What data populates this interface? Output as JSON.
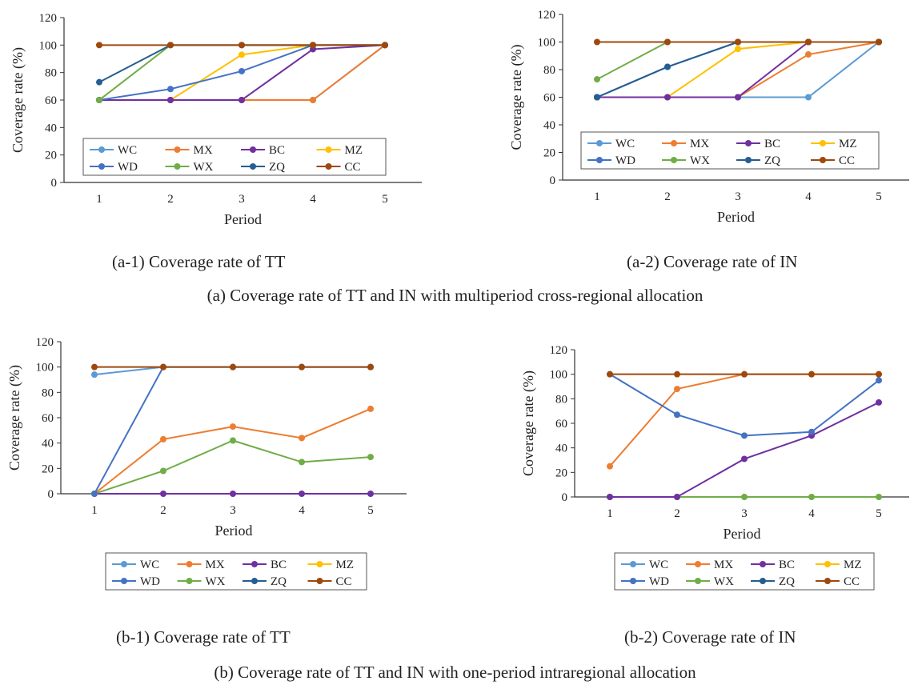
{
  "colors": {
    "WC": "#5B9BD5",
    "MX": "#ED7D31",
    "BC": "#7030A0",
    "MZ": "#FFC000",
    "WD": "#4472C4",
    "WX": "#70AD47",
    "ZQ": "#255E91",
    "CC": "#9E480E",
    "axis": "#333333"
  },
  "legend_entries": [
    "WC",
    "MX",
    "BC",
    "MZ",
    "WD",
    "WX",
    "ZQ",
    "CC"
  ],
  "captions": {
    "a1": "(a-1) Coverage rate of TT",
    "a2": "(a-2) Coverage rate of IN",
    "a": "(a) Coverage rate of TT and IN with multiperiod cross-regional allocation",
    "b1": "(b-1) Coverage rate of TT",
    "b2": "(b-2) Coverage rate of IN",
    "b": "(b) Coverage rate of TT and IN with one-period intraregional allocation"
  },
  "chart_data": [
    {
      "id": "a1",
      "type": "line",
      "title": "",
      "xlabel": "Period",
      "ylabel": "Coverage rate (%)",
      "x": [
        1,
        2,
        3,
        4,
        5
      ],
      "ylim": [
        0,
        120
      ],
      "yticks": [
        0,
        20,
        40,
        60,
        80,
        100,
        120
      ],
      "grid": false,
      "legend_position": "bottom-inside",
      "series": [
        {
          "name": "WC",
          "values": [
            60,
            60,
            60,
            60,
            100
          ]
        },
        {
          "name": "MX",
          "values": [
            60,
            60,
            60,
            60,
            100
          ]
        },
        {
          "name": "MZ",
          "values": [
            60,
            60,
            93,
            100,
            100
          ]
        },
        {
          "name": "BC",
          "values": [
            60,
            60,
            60,
            97,
            100
          ]
        },
        {
          "name": "WD",
          "values": [
            60,
            68,
            81,
            100,
            100
          ]
        },
        {
          "name": "WX",
          "values": [
            60,
            100,
            100,
            100,
            100
          ]
        },
        {
          "name": "ZQ",
          "values": [
            73,
            100,
            100,
            100,
            100
          ]
        },
        {
          "name": "CC",
          "values": [
            100,
            100,
            100,
            100,
            100
          ]
        }
      ]
    },
    {
      "id": "a2",
      "type": "line",
      "title": "",
      "xlabel": "Period",
      "ylabel": "Coverage rate (%)",
      "x": [
        1,
        2,
        3,
        4,
        5
      ],
      "ylim": [
        0,
        120
      ],
      "yticks": [
        0,
        20,
        40,
        60,
        80,
        100,
        120
      ],
      "grid": false,
      "legend_position": "bottom-inside",
      "series": [
        {
          "name": "WC",
          "values": [
            60,
            60,
            60,
            60,
            100
          ]
        },
        {
          "name": "MX",
          "values": [
            60,
            60,
            60,
            91,
            100
          ]
        },
        {
          "name": "MZ",
          "values": [
            60,
            60,
            95,
            100,
            100
          ]
        },
        {
          "name": "BC",
          "values": [
            60,
            60,
            60,
            100,
            100
          ]
        },
        {
          "name": "WD",
          "values": [
            60,
            82,
            100,
            100,
            100
          ]
        },
        {
          "name": "ZQ",
          "values": [
            60,
            82,
            100,
            100,
            100
          ]
        },
        {
          "name": "WX",
          "values": [
            73,
            100,
            100,
            100,
            100
          ]
        },
        {
          "name": "CC",
          "values": [
            100,
            100,
            100,
            100,
            100
          ]
        }
      ]
    },
    {
      "id": "b1",
      "type": "line",
      "title": "",
      "xlabel": "Period",
      "ylabel": "Coverage rate (%)",
      "x": [
        1,
        2,
        3,
        4,
        5
      ],
      "ylim": [
        0,
        120
      ],
      "yticks": [
        0,
        20,
        40,
        60,
        80,
        100,
        120
      ],
      "grid": false,
      "legend_position": "bottom-outside",
      "series": [
        {
          "name": "BC",
          "values": [
            0,
            0,
            0,
            0,
            0
          ]
        },
        {
          "name": "WX",
          "values": [
            0,
            18,
            42,
            25,
            29
          ]
        },
        {
          "name": "MX",
          "values": [
            0,
            43,
            53,
            44,
            67
          ]
        },
        {
          "name": "WD",
          "values": [
            0,
            100,
            100,
            100,
            100
          ]
        },
        {
          "name": "WC",
          "values": [
            94,
            100,
            100,
            100,
            100
          ]
        },
        {
          "name": "CC",
          "values": [
            100,
            100,
            100,
            100,
            100
          ]
        }
      ]
    },
    {
      "id": "b2",
      "type": "line",
      "title": "",
      "xlabel": "Period",
      "ylabel": "Coverage rate (%)",
      "x": [
        1,
        2,
        3,
        4,
        5
      ],
      "ylim": [
        0,
        120
      ],
      "yticks": [
        0,
        20,
        40,
        60,
        80,
        100,
        120
      ],
      "grid": false,
      "legend_position": "bottom-outside",
      "series": [
        {
          "name": "WX",
          "values": [
            0,
            0,
            0,
            0,
            0
          ]
        },
        {
          "name": "BC",
          "values": [
            0,
            0,
            31,
            50,
            77
          ]
        },
        {
          "name": "MX",
          "values": [
            25,
            88,
            100,
            100,
            100
          ]
        },
        {
          "name": "WD",
          "values": [
            100,
            67,
            50,
            53,
            95
          ]
        },
        {
          "name": "CC",
          "values": [
            100,
            100,
            100,
            100,
            100
          ]
        }
      ]
    }
  ]
}
